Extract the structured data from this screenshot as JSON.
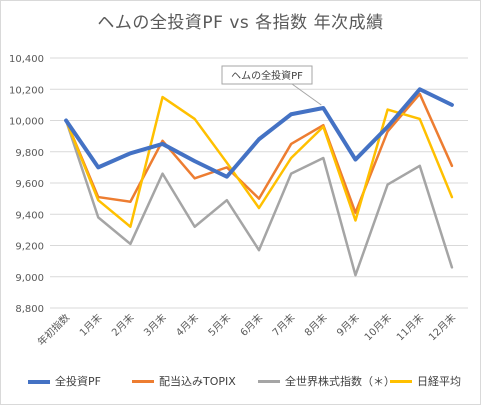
{
  "chart_data": {
    "type": "line",
    "title": "ヘムの全投資PF vs 各指数 年次成績",
    "categories": [
      "年初指数",
      "1月末",
      "2月末",
      "3月末",
      "4月末",
      "5月末",
      "6月末",
      "7月末",
      "8月末",
      "9月末",
      "10月末",
      "11月末",
      "12月末"
    ],
    "ylim": [
      8800,
      10400
    ],
    "yticks": [
      "8,800",
      "9,000",
      "9,200",
      "9,400",
      "9,600",
      "9,800",
      "10,000",
      "10,200",
      "10,400"
    ],
    "grid": "horizontal",
    "legend_position": "bottom",
    "series": [
      {
        "name": "全投資PF",
        "color": "#4472C4",
        "values": [
          10000,
          9700,
          9790,
          9850,
          9740,
          9640,
          9880,
          10040,
          10080,
          9750,
          9960,
          10200,
          10100
        ]
      },
      {
        "name": "配当込みTOPIX",
        "color": "#ED7D31",
        "values": [
          10000,
          9510,
          9480,
          9870,
          9630,
          9700,
          9500,
          9850,
          9970,
          9410,
          9930,
          10170,
          9710
        ]
      },
      {
        "name": "全世界株式指数（＊）",
        "color": "#A5A5A5",
        "values": [
          10000,
          9380,
          9210,
          9660,
          9320,
          9490,
          9170,
          9660,
          9760,
          9010,
          9590,
          9710,
          9060
        ]
      },
      {
        "name": "日経平均",
        "color": "#FFC000",
        "values": [
          10000,
          9490,
          9320,
          10150,
          10010,
          9730,
          9440,
          9760,
          9960,
          9360,
          10070,
          10010,
          9510
        ]
      }
    ],
    "annotation": {
      "text": "ヘムの全投資PF",
      "series_index": 0,
      "point_index": 8
    }
  }
}
